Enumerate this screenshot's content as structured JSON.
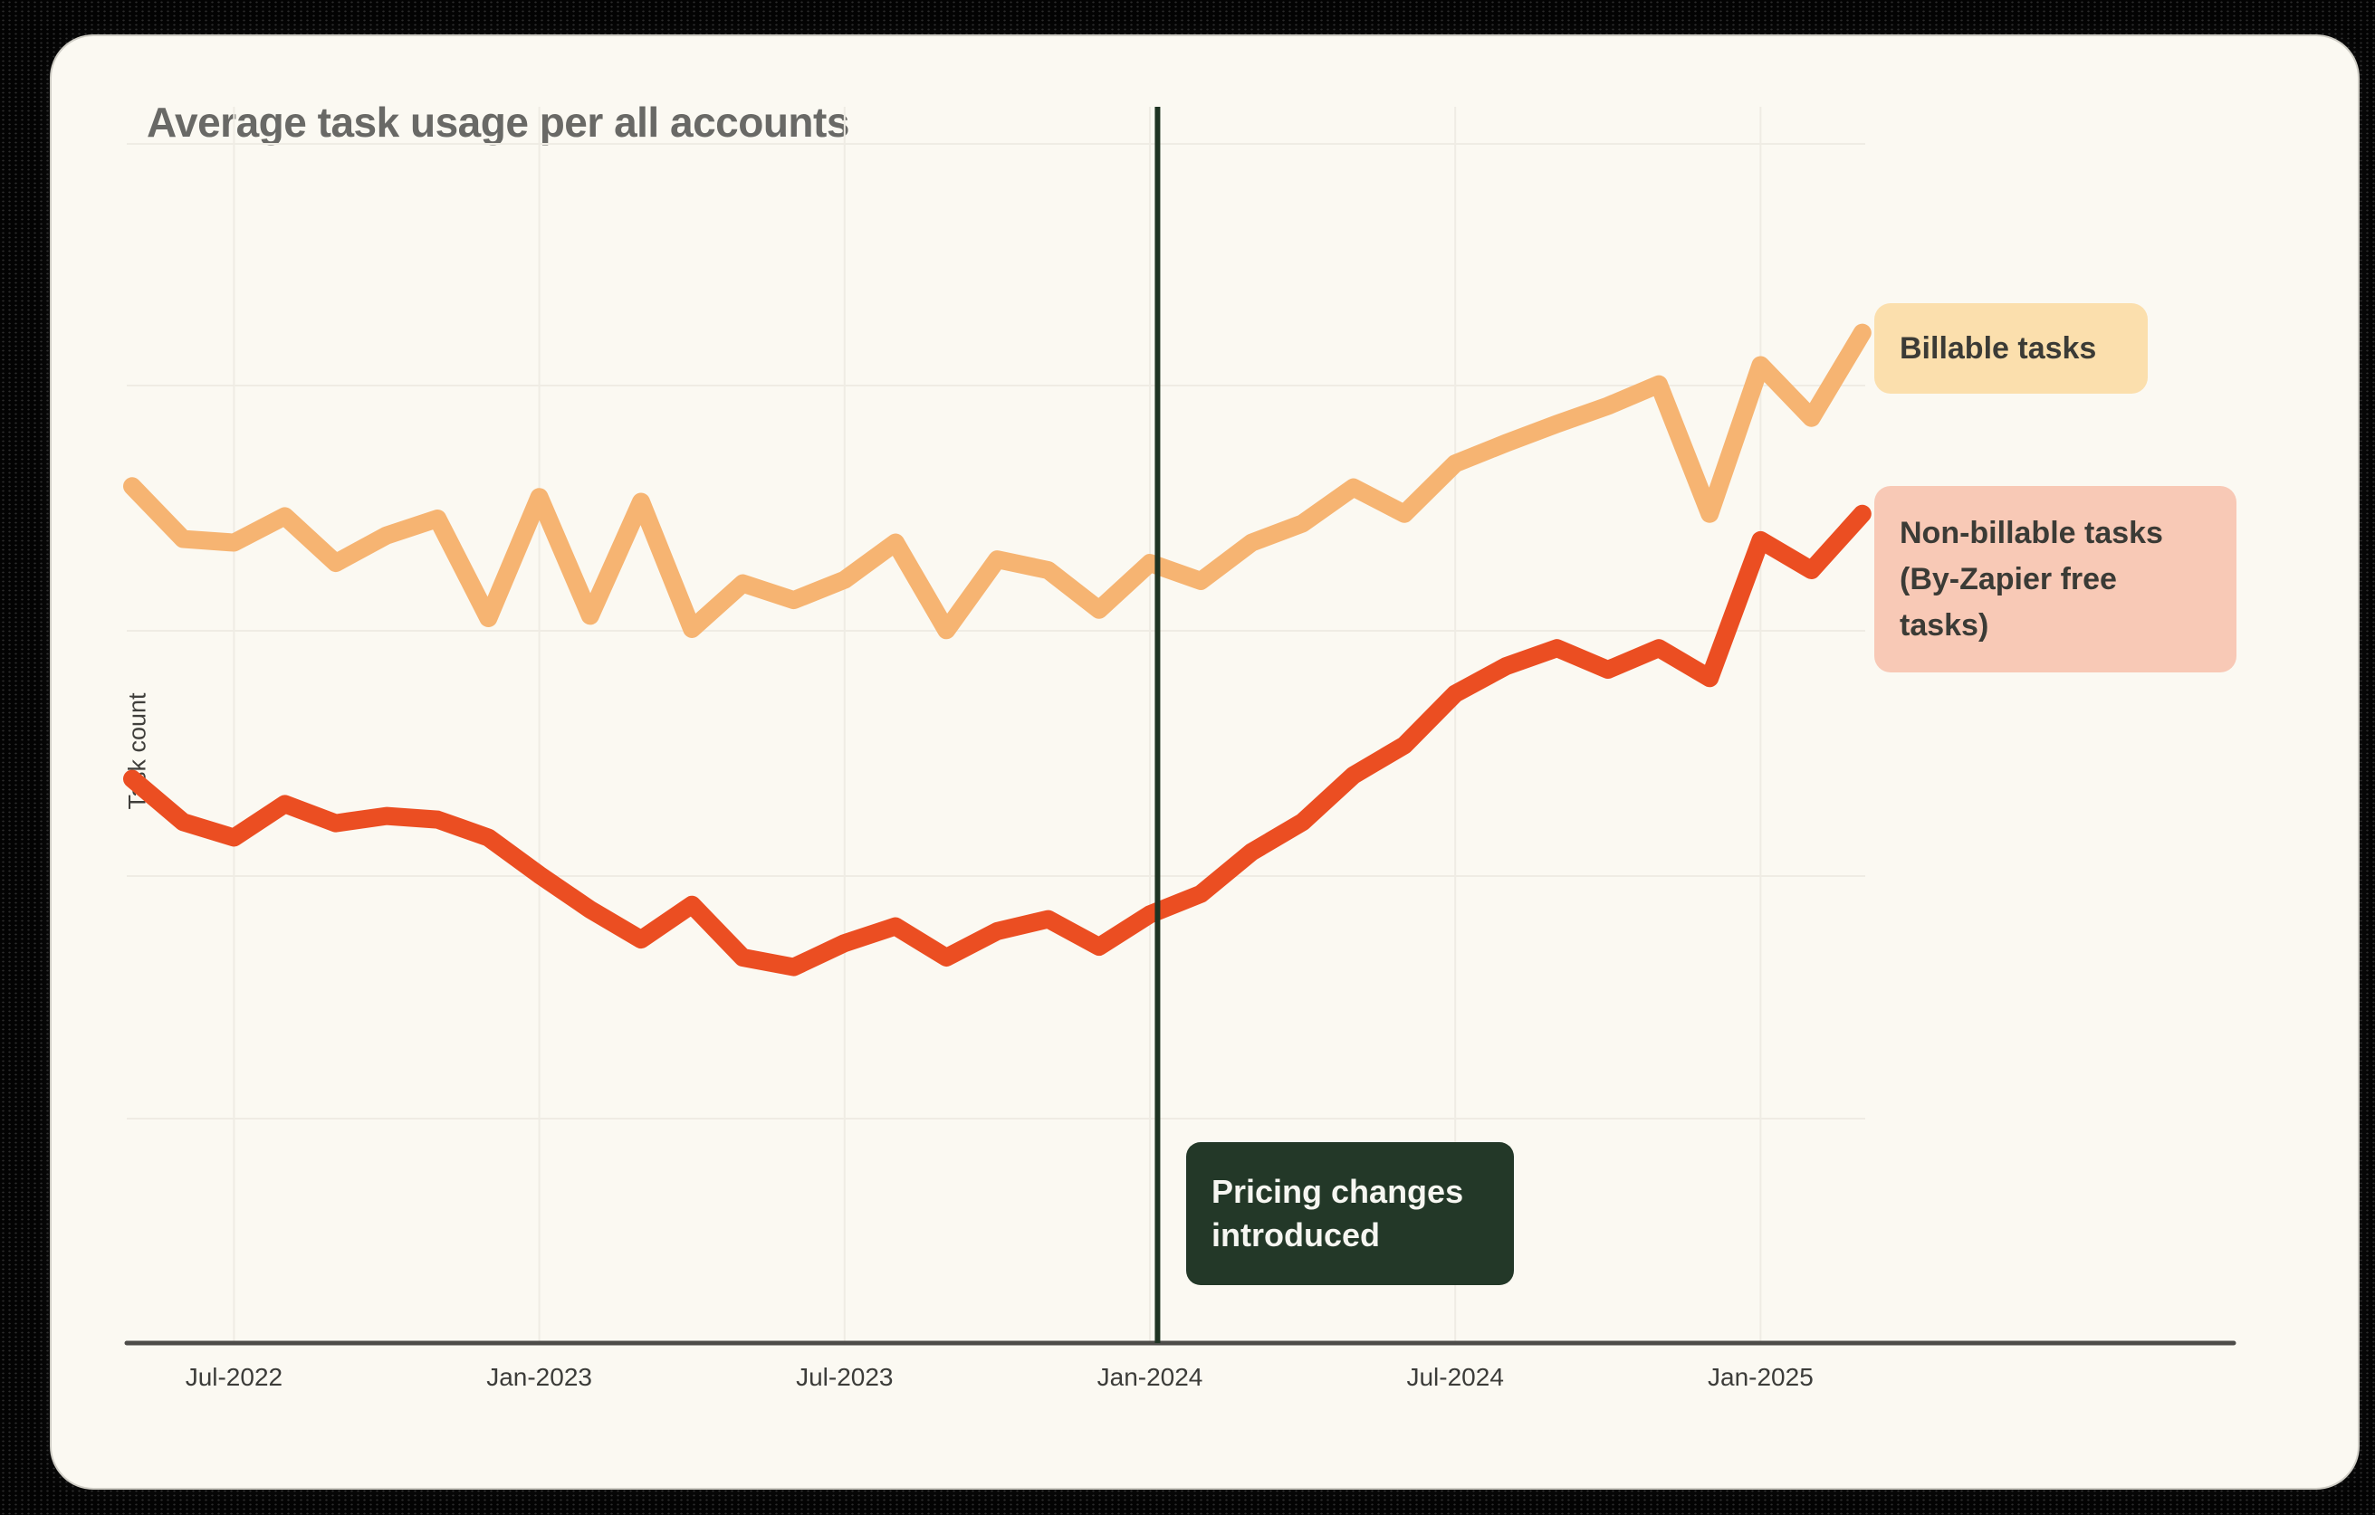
{
  "colors": {
    "page_background": "#030303",
    "card_background": "#FBF9F2",
    "title_text": "#696966",
    "gridline": "#EFECE4",
    "axis_line": "#4D4C49",
    "tick_text": "#3C3C39",
    "billable_line": "#F6B472",
    "non_billable_line": "#EB4E22",
    "event_line": "#1E3322",
    "event_box_background": "#233828",
    "event_box_text": "#F6F6F1",
    "legend_billable_background": "#FBDFAD",
    "legend_non_billable_background": "#F8C9B6",
    "legend_text": "#3B3B36"
  },
  "chart_data": {
    "type": "line",
    "title": "Average task usage per all accounts",
    "xlabel": "",
    "ylabel": "Task count",
    "grid": true,
    "legend_position": "right",
    "ylim": [
      0,
      105
    ],
    "y_axis_numeric_labels_shown": false,
    "x": [
      "May-2022",
      "Jun-2022",
      "Jul-2022",
      "Aug-2022",
      "Sep-2022",
      "Oct-2022",
      "Nov-2022",
      "Dec-2022",
      "Jan-2023",
      "Feb-2023",
      "Mar-2023",
      "Apr-2023",
      "May-2023",
      "Jun-2023",
      "Jul-2023",
      "Aug-2023",
      "Sep-2023",
      "Oct-2023",
      "Nov-2023",
      "Dec-2023",
      "Jan-2024",
      "Feb-2024",
      "Mar-2024",
      "Apr-2024",
      "May-2024",
      "Jun-2024",
      "Jul-2024",
      "Aug-2024",
      "Sep-2024",
      "Oct-2024",
      "Nov-2024",
      "Dec-2024",
      "Jan-2025",
      "Feb-2025",
      "Mar-2025"
    ],
    "x_tick_labels": [
      "Jul-2022",
      "Jan-2023",
      "Jul-2023",
      "Jan-2024",
      "Jul-2024",
      "Jan-2025"
    ],
    "x_tick_indices": [
      2,
      8,
      14,
      20,
      26,
      32
    ],
    "series": [
      {
        "name": "Billable tasks",
        "color": "#F6B472",
        "values": [
          71.3,
          66.9,
          66.6,
          68.8,
          64.9,
          67.2,
          68.6,
          60.3,
          70.4,
          60.5,
          70.0,
          59.4,
          63.2,
          61.8,
          63.5,
          66.6,
          59.3,
          65.2,
          64.3,
          61.0,
          64.9,
          63.4,
          66.6,
          68.2,
          71.2,
          69.0,
          73.2,
          74.9,
          76.5,
          78.0,
          79.8,
          69.0,
          81.4,
          77.0,
          84.1
        ]
      },
      {
        "name": "Non-billable tasks (By-Zapier free tasks)",
        "color": "#EB4E22",
        "values": [
          46.9,
          43.3,
          42.0,
          44.8,
          43.2,
          43.8,
          43.5,
          42.0,
          38.9,
          36.0,
          33.5,
          36.4,
          32.0,
          31.2,
          33.2,
          34.6,
          32.0,
          34.2,
          35.2,
          32.9,
          35.6,
          37.3,
          40.8,
          43.3,
          47.2,
          49.7,
          54.0,
          56.3,
          57.8,
          56.0,
          57.8,
          55.3,
          66.8,
          64.3,
          69.0
        ]
      }
    ],
    "event_line": {
      "label": "Pricing changes introduced",
      "month": "Jan-2024",
      "month_index": 20.15
    }
  }
}
